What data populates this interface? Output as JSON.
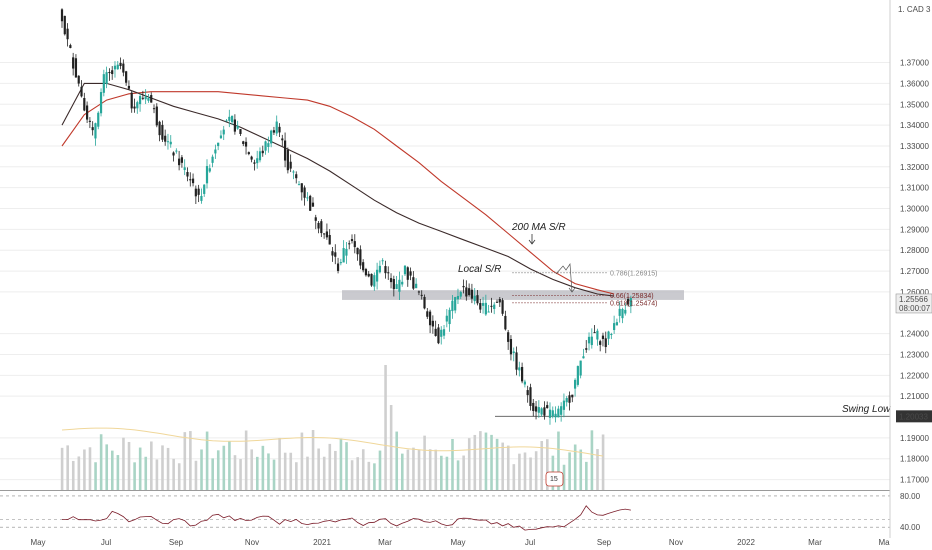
{
  "colors": {
    "up": "#26a69a",
    "down": "#222222",
    "ma_dark": "#3b2a2a",
    "ma_red": "#c0392b",
    "rsi": "#7b1d2a",
    "grid": "#eeeeee",
    "srzone": "#b8b8bf",
    "vol_up": "#a9d4c5",
    "vol_down": "#cfcfcf",
    "vol_ma": "#f0d79a"
  },
  "chart_data": {
    "type": "candlestick",
    "title": "",
    "symbol_label": "1. CAD 3",
    "x_axis_labels": [
      "May",
      "Jul",
      "Sep",
      "Nov",
      "2021",
      "Mar",
      "May",
      "Jul",
      "Sep",
      "Nov",
      "2022",
      "Mar",
      "Ma"
    ],
    "y_ticks": [
      "1.37000",
      "1.36000",
      "1.35000",
      "1.34000",
      "1.33000",
      "1.32000",
      "1.31000",
      "1.30000",
      "1.29000",
      "1.28000",
      "1.27000",
      "1.26000",
      "1.24000",
      "1.23000",
      "1.22000",
      "1.21000",
      "1.19000",
      "1.18000",
      "1.17000"
    ],
    "ylim": [
      1.165,
      1.4
    ],
    "current_price": "1.25566",
    "countdown": "08:00:07",
    "swing_low_price": "1.20033",
    "price_path": [
      [
        0,
        1.395
      ],
      [
        4,
        1.355
      ],
      [
        6,
        1.335
      ],
      [
        8,
        1.362
      ],
      [
        11,
        1.368
      ],
      [
        13,
        1.35
      ],
      [
        16,
        1.355
      ],
      [
        18,
        1.338
      ],
      [
        21,
        1.325
      ],
      [
        24,
        1.312
      ],
      [
        25,
        1.304
      ],
      [
        27,
        1.322
      ],
      [
        29,
        1.338
      ],
      [
        31,
        1.342
      ],
      [
        33,
        1.332
      ],
      [
        35,
        1.322
      ],
      [
        37,
        1.33
      ],
      [
        39,
        1.342
      ],
      [
        41,
        1.32
      ],
      [
        43,
        1.312
      ],
      [
        46,
        1.296
      ],
      [
        48,
        1.285
      ],
      [
        50,
        1.272
      ],
      [
        52,
        1.285
      ],
      [
        54,
        1.275
      ],
      [
        56,
        1.265
      ],
      [
        58,
        1.275
      ],
      [
        60,
        1.26
      ],
      [
        62,
        1.27
      ],
      [
        64,
        1.262
      ],
      [
        66,
        1.25
      ],
      [
        68,
        1.238
      ],
      [
        70,
        1.25
      ],
      [
        72,
        1.262
      ],
      [
        74,
        1.258
      ],
      [
        76,
        1.252
      ],
      [
        78,
        1.255
      ],
      [
        79,
        1.255
      ],
      [
        81,
        1.232
      ],
      [
        83,
        1.218
      ],
      [
        85,
        1.205
      ],
      [
        87,
        1.203
      ],
      [
        88,
        1.201
      ],
      [
        90,
        1.203
      ],
      [
        92,
        1.212
      ],
      [
        94,
        1.232
      ],
      [
        96,
        1.24
      ],
      [
        98,
        1.235
      ],
      [
        100,
        1.248
      ],
      [
        102,
        1.256
      ]
    ],
    "ma_dark": [
      [
        0,
        1.34
      ],
      [
        4,
        1.36
      ],
      [
        8,
        1.36
      ],
      [
        12,
        1.357
      ],
      [
        16,
        1.353
      ],
      [
        20,
        1.349
      ],
      [
        24,
        1.346
      ],
      [
        28,
        1.343
      ],
      [
        32,
        1.339
      ],
      [
        36,
        1.334
      ],
      [
        40,
        1.329
      ],
      [
        44,
        1.324
      ],
      [
        48,
        1.318
      ],
      [
        52,
        1.311
      ],
      [
        56,
        1.304
      ],
      [
        60,
        1.298
      ],
      [
        64,
        1.293
      ],
      [
        68,
        1.289
      ],
      [
        72,
        1.285
      ],
      [
        76,
        1.281
      ],
      [
        80,
        1.277
      ],
      [
        84,
        1.271
      ],
      [
        88,
        1.266
      ],
      [
        92,
        1.262
      ],
      [
        96,
        1.259
      ],
      [
        99,
        1.258
      ]
    ],
    "ma_red": [
      [
        0,
        1.33
      ],
      [
        4,
        1.345
      ],
      [
        8,
        1.352
      ],
      [
        12,
        1.355
      ],
      [
        16,
        1.356
      ],
      [
        20,
        1.356
      ],
      [
        24,
        1.356
      ],
      [
        28,
        1.356
      ],
      [
        32,
        1.355
      ],
      [
        36,
        1.354
      ],
      [
        40,
        1.353
      ],
      [
        44,
        1.352
      ],
      [
        48,
        1.349
      ],
      [
        52,
        1.344
      ],
      [
        56,
        1.338
      ],
      [
        60,
        1.33
      ],
      [
        64,
        1.322
      ],
      [
        68,
        1.313
      ],
      [
        72,
        1.305
      ],
      [
        76,
        1.297
      ],
      [
        80,
        1.288
      ],
      [
        84,
        1.279
      ],
      [
        88,
        1.27
      ],
      [
        92,
        1.264
      ],
      [
        96,
        1.261
      ],
      [
        99,
        1.259
      ]
    ],
    "fib_levels": [
      {
        "label": "0.786(1.26915)",
        "value": 1.26915,
        "color": "#888888"
      },
      {
        "label": "0.66(1.25834)",
        "value": 1.25834,
        "color": "#7a2a2a"
      },
      {
        "label": "0.618(1.25474)",
        "value": 1.25474,
        "color": "#7a2a2a"
      }
    ],
    "sr_zone": [
      1.2576,
      1.2594
    ],
    "annotations": {
      "ma_sr": "200 MA S/R",
      "local_sr": "Local S/R",
      "swing_low": "Swing Low",
      "volume_badge": "15"
    },
    "rsi": {
      "levels": [
        80,
        50,
        40
      ],
      "tick_labels": [
        "80.00",
        "40.00"
      ],
      "path": [
        [
          0,
          48
        ],
        [
          3,
          52
        ],
        [
          6,
          45
        ],
        [
          9,
          58
        ],
        [
          12,
          49
        ],
        [
          15,
          55
        ],
        [
          18,
          44
        ],
        [
          21,
          50
        ],
        [
          24,
          41
        ],
        [
          27,
          56
        ],
        [
          30,
          52
        ],
        [
          33,
          47
        ],
        [
          36,
          55
        ],
        [
          39,
          46
        ],
        [
          42,
          50
        ],
        [
          45,
          43
        ],
        [
          48,
          48
        ],
        [
          51,
          52
        ],
        [
          54,
          45
        ],
        [
          57,
          50
        ],
        [
          60,
          44
        ],
        [
          63,
          53
        ],
        [
          66,
          48
        ],
        [
          69,
          42
        ],
        [
          72,
          51
        ],
        [
          75,
          47
        ],
        [
          78,
          45
        ],
        [
          81,
          40
        ],
        [
          84,
          36
        ],
        [
          87,
          39
        ],
        [
          90,
          43
        ],
        [
          92,
          52
        ],
        [
          94,
          65
        ],
        [
          96,
          58
        ],
        [
          98,
          56
        ],
        [
          100,
          62
        ],
        [
          102,
          64
        ]
      ]
    }
  }
}
